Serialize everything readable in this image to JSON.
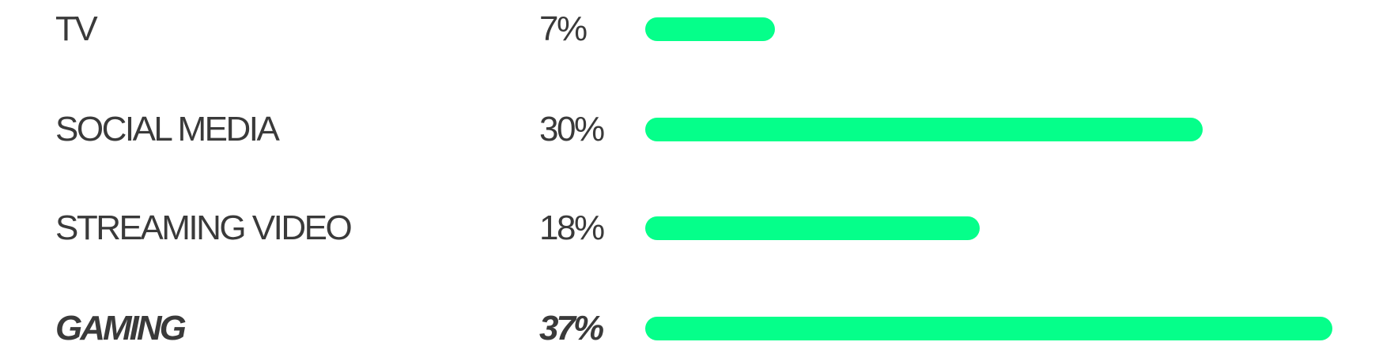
{
  "chart_data": {
    "type": "bar",
    "orientation": "horizontal",
    "title": "",
    "xlabel": "",
    "ylabel": "",
    "grid": false,
    "xlim": [
      0,
      37
    ],
    "bar_color": "#05ff8a",
    "text_color": "#3a3a3a",
    "categories": [
      "TV",
      "SOCIAL MEDIA",
      "STREAMING VIDEO",
      "GAMING"
    ],
    "values": [
      7,
      30,
      18,
      37
    ],
    "value_labels": [
      "7%",
      "30%",
      "18%",
      "37%"
    ],
    "highlighted": "GAMING"
  }
}
